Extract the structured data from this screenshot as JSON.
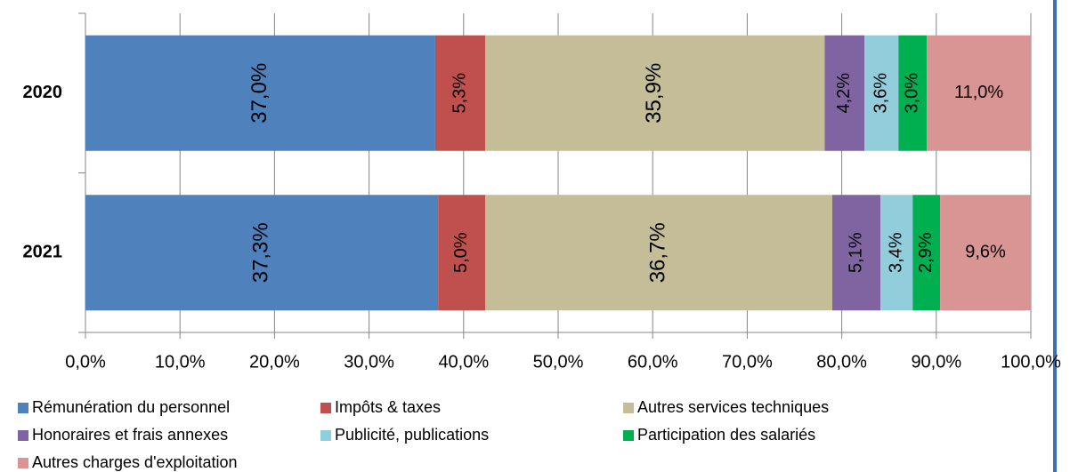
{
  "chart_data": {
    "type": "stacked_bar_horizontal",
    "categories": [
      "2020",
      "2021"
    ],
    "series": [
      {
        "name": "Rémunération du personnel",
        "color": "#4f81bd",
        "label_color": "#ffffff",
        "values": [
          37.0,
          37.3
        ],
        "value_labels": [
          "37,0%",
          "37,3%"
        ]
      },
      {
        "name": "Impôts & taxes",
        "color": "#c0504d",
        "label_color": "#ffffff",
        "values": [
          5.3,
          5.0
        ],
        "value_labels": [
          "5,3%",
          "5,0%"
        ]
      },
      {
        "name": "Autres services techniques",
        "color": "#c4bd97",
        "label_color": "#ffffff",
        "values": [
          35.9,
          36.7
        ],
        "value_labels": [
          "35,9%",
          "36,7%"
        ]
      },
      {
        "name": "Honoraires et frais annexes",
        "color": "#8064a2",
        "label_color": "#ffffff",
        "values": [
          4.2,
          5.1
        ],
        "value_labels": [
          "4,2%",
          "5,1%"
        ]
      },
      {
        "name": "Publicité, publications",
        "color": "#92cddc",
        "label_color": "#ffffff",
        "values": [
          3.6,
          3.4
        ],
        "value_labels": [
          "3,6%",
          "3,4%"
        ]
      },
      {
        "name": "Participation des salariés",
        "color": "#00b050",
        "label_color": "#ffffff",
        "values": [
          3.0,
          2.9
        ],
        "value_labels": [
          "3,0%",
          "2,9%"
        ]
      },
      {
        "name": "Autres charges d'exploitation",
        "color": "#d99594",
        "label_color": "#000000",
        "values": [
          11.0,
          9.6
        ],
        "value_labels": [
          "11,0%",
          "9,6%"
        ]
      }
    ],
    "xlim": [
      0,
      100
    ],
    "xticks": [
      {
        "value": 0,
        "label": "0,0%"
      },
      {
        "value": 10,
        "label": "10,0%"
      },
      {
        "value": 20,
        "label": "20,0%"
      },
      {
        "value": 30,
        "label": "30,0%"
      },
      {
        "value": 40,
        "label": "40,0%"
      },
      {
        "value": 50,
        "label": "50,0%"
      },
      {
        "value": 60,
        "label": "60,0%"
      },
      {
        "value": 70,
        "label": "70,0%"
      },
      {
        "value": 80,
        "label": "80,0%"
      },
      {
        "value": 90,
        "label": "90,0%"
      },
      {
        "value": 100,
        "label": "100,0%"
      }
    ],
    "grid": true,
    "legend": "bottom"
  }
}
